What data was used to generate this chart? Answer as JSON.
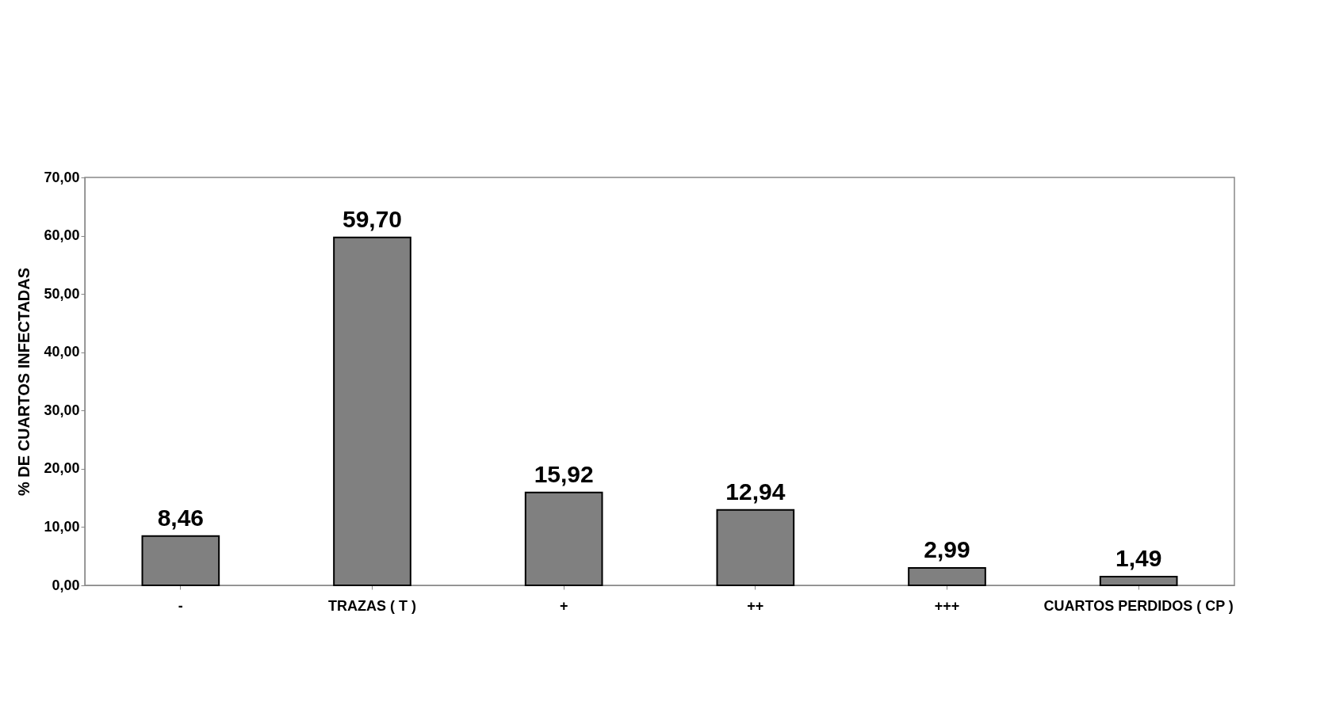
{
  "chart_data": {
    "type": "bar",
    "ylabel": "% DE CUARTOS INFECTADAS",
    "categories": [
      "-",
      "TRAZAS ( T )",
      "+",
      "++",
      "+++",
      "CUARTOS PERDIDOS ( CP )"
    ],
    "values": [
      8.46,
      59.7,
      15.92,
      12.94,
      2.99,
      1.49
    ],
    "value_labels": [
      "8,46",
      "59,70",
      "15,92",
      "12,94",
      "2,99",
      "1,49"
    ],
    "color": "#808080",
    "ylim": [
      0,
      70
    ],
    "yticks": [
      {
        "value": 0,
        "label": "0,00"
      },
      {
        "value": 10,
        "label": "10,00"
      },
      {
        "value": 20,
        "label": "20,00"
      },
      {
        "value": 30,
        "label": "30,00"
      },
      {
        "value": 40,
        "label": "40,00"
      },
      {
        "value": 50,
        "label": "50,00"
      },
      {
        "value": 60,
        "label": "60,00"
      },
      {
        "value": 70,
        "label": "70,00"
      }
    ],
    "grid": false
  }
}
